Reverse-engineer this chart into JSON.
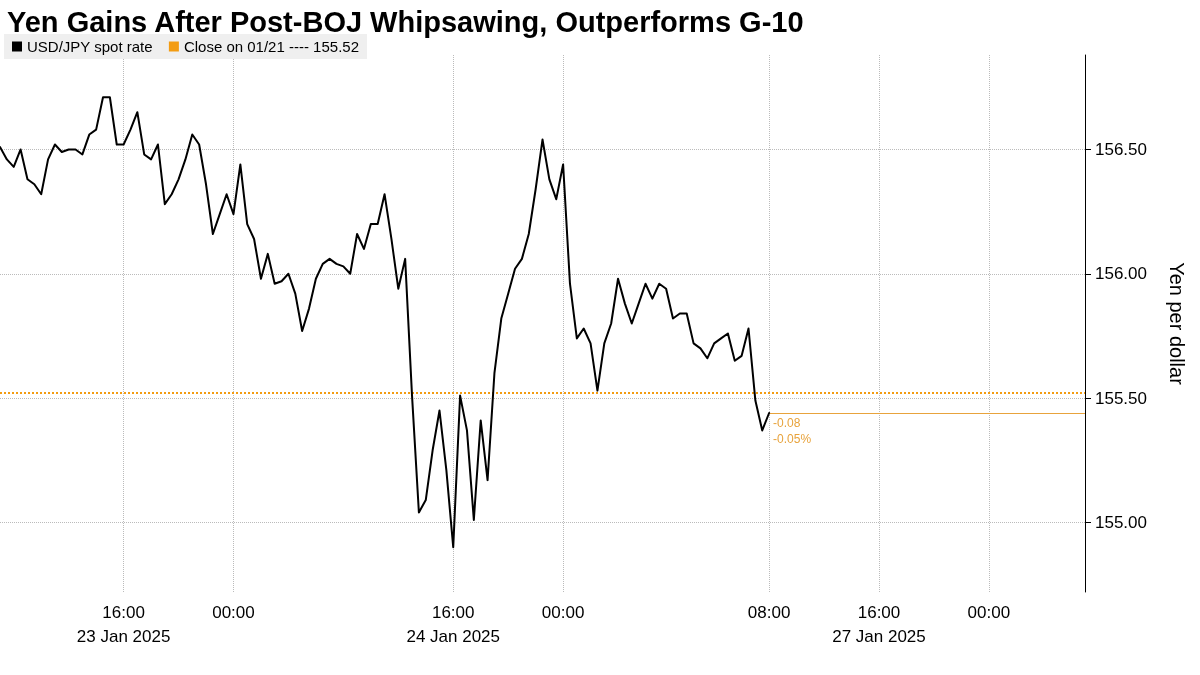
{
  "chart_data": {
    "type": "line",
    "title": "Yen Gains After Post-BOJ Whipsawing, Outperforms G-10",
    "ylabel": "Yen per dollar",
    "categories": [
      null,
      null,
      null,
      null,
      null,
      null,
      null,
      null,
      null,
      null,
      null,
      null,
      null,
      null,
      null,
      null,
      null,
      null,
      "16:00\n23 Jan 2025",
      null,
      null,
      null,
      null,
      null,
      null,
      null,
      null,
      null,
      null,
      null,
      null,
      null,
      null,
      null,
      "00:00",
      null,
      null,
      null,
      null,
      null,
      null,
      null,
      null,
      null,
      null,
      null,
      null,
      null,
      null,
      null,
      null,
      null,
      null,
      null,
      null,
      null,
      null,
      null,
      null,
      null,
      null,
      null,
      null,
      null,
      null,
      null,
      "16:00\n24 Jan 2025",
      null,
      null,
      null,
      null,
      null,
      null,
      null,
      null,
      null,
      null,
      null,
      null,
      null,
      null,
      null,
      "00:00",
      null,
      null,
      null,
      null,
      null,
      null,
      null,
      null,
      null,
      null,
      null,
      null,
      null,
      null,
      null,
      null,
      null,
      null,
      null,
      null,
      null,
      null,
      null,
      null,
      null,
      null,
      null,
      null,
      null,
      "08:00",
      null,
      null,
      null,
      null,
      null,
      null,
      null,
      null,
      null,
      null,
      null,
      null,
      null,
      null,
      null,
      "16:00\n27 Jan 2025",
      null,
      null,
      null,
      null,
      null,
      null,
      null,
      null,
      null,
      null,
      null,
      null,
      null,
      null,
      null,
      "00:00",
      null,
      null,
      null,
      null,
      null,
      null,
      null,
      null,
      null,
      null,
      null,
      null,
      null,
      null
    ],
    "series": [
      {
        "name": "USD/JPY spot rate",
        "color": "#000000",
        "values": [
          156.51,
          156.46,
          156.43,
          156.5,
          156.38,
          156.36,
          156.32,
          156.46,
          156.52,
          156.49,
          156.5,
          156.5,
          156.48,
          156.56,
          156.58,
          156.71,
          156.71,
          156.52,
          156.52,
          156.58,
          156.65,
          156.48,
          156.46,
          156.52,
          156.28,
          156.32,
          156.38,
          156.46,
          156.56,
          156.52,
          156.36,
          156.16,
          156.24,
          156.32,
          156.24,
          156.44,
          156.2,
          156.14,
          155.98,
          156.08,
          155.96,
          155.97,
          156.0,
          155.92,
          155.77,
          155.86,
          155.98,
          156.04,
          156.06,
          156.04,
          156.03,
          156.0,
          156.16,
          156.1,
          156.2,
          156.2,
          156.32,
          156.14,
          155.94,
          156.06,
          155.51,
          155.04,
          155.09,
          155.29,
          155.45,
          155.21,
          154.9,
          155.51,
          155.37,
          155.01,
          155.41,
          155.17,
          155.6,
          155.82,
          155.92,
          156.02,
          156.06,
          156.16,
          156.34,
          156.54,
          156.38,
          156.3,
          156.44,
          155.96,
          155.74,
          155.78,
          155.72,
          155.53,
          155.72,
          155.8,
          155.98,
          155.88,
          155.8,
          155.88,
          155.96,
          155.9,
          155.96,
          155.94,
          155.82,
          155.84,
          155.84,
          155.72,
          155.7,
          155.66,
          155.72,
          155.74,
          155.76,
          155.65,
          155.67,
          155.78,
          155.49,
          155.37,
          155.44,
          null,
          null,
          null,
          null,
          null,
          null,
          null,
          null,
          null,
          null,
          null,
          null,
          null,
          null,
          null,
          null,
          null,
          null,
          null,
          null,
          null,
          null,
          null,
          null,
          null,
          null,
          null,
          null,
          null,
          null,
          null,
          null,
          null,
          null,
          null,
          null,
          null,
          null,
          null,
          null,
          null,
          null,
          null,
          null,
          null,
          null
        ]
      }
    ],
    "ylim": [
      154.72,
      156.88
    ],
    "yticks": [
      {
        "value": 155,
        "label": "155.00"
      },
      {
        "value": 155.5,
        "label": "155.50"
      },
      {
        "value": 156,
        "label": "156.00"
      },
      {
        "value": 156.5,
        "label": "156.50"
      }
    ],
    "ref_lines": [
      {
        "axis": "y",
        "value": 155.52,
        "label": "Close on 01/21 ---- 155.52",
        "color": "#f39c12",
        "line_style": "dotted"
      },
      {
        "axis": "y",
        "value": 155.44,
        "color": "#e8a33c",
        "line_style": "solid"
      }
    ],
    "annotations": [
      {
        "text": "-0.08",
        "y": 155.44
      },
      {
        "text": "-0.05%",
        "y": 155.44
      }
    ],
    "grid": true,
    "legend": "top left",
    "marker": "none",
    "line_style": "solid"
  }
}
